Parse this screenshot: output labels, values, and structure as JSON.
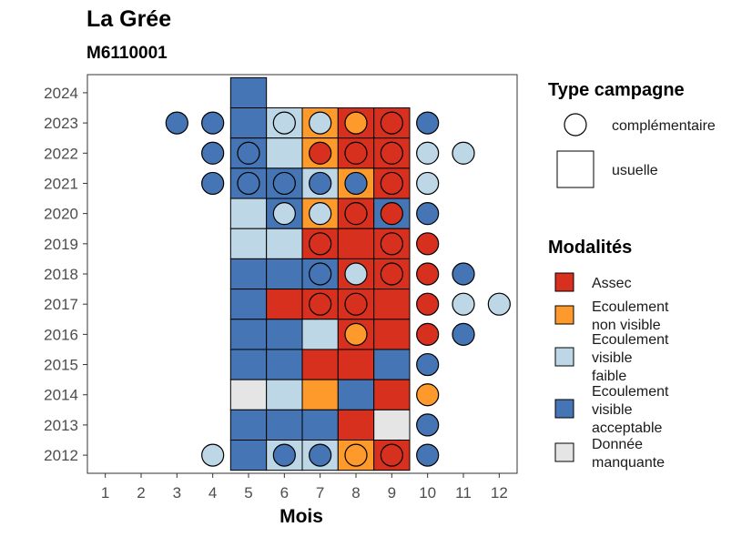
{
  "chart_data": {
    "type": "heatmap",
    "title": "La Grée",
    "subtitle": "M6110001",
    "xlabel": "Mois",
    "ylabel": "",
    "x_ticks": [
      1,
      2,
      3,
      4,
      5,
      6,
      7,
      8,
      9,
      10,
      11,
      12
    ],
    "y_ticks": [
      2012,
      2013,
      2014,
      2015,
      2016,
      2017,
      2018,
      2019,
      2020,
      2021,
      2022,
      2023,
      2024
    ],
    "xlim": [
      0.5,
      12.5
    ],
    "ylim": [
      2011.4,
      2024.6
    ],
    "grid": false,
    "legend_position": "right",
    "legend_shape": {
      "title": "Type campagne",
      "items": [
        {
          "key": "complementaire",
          "label": "complémentaire",
          "shape": "circle"
        },
        {
          "key": "usuelle",
          "label": "usuelle",
          "shape": "square"
        }
      ]
    },
    "legend_fill": {
      "title": "Modalités",
      "items": [
        {
          "key": "A",
          "lines": [
            "Assec"
          ],
          "color": "#d7301f"
        },
        {
          "key": "N",
          "lines": [
            "Ecoulement",
            "non visible"
          ],
          "color": "#fd9a2b"
        },
        {
          "key": "F",
          "lines": [
            "Ecoulement",
            "visible",
            "faible"
          ],
          "color": "#bdd7e7"
        },
        {
          "key": "E",
          "lines": [
            "Ecoulement",
            "visible",
            "acceptable"
          ],
          "color": "#4575b4"
        },
        {
          "key": "M",
          "lines": [
            "Donnée",
            "manquante"
          ],
          "color": "#e5e5e5"
        }
      ]
    },
    "usuelle": [
      {
        "year": 2024,
        "values": {
          "5": "E"
        }
      },
      {
        "year": 2023,
        "values": {
          "5": "E",
          "6": "F",
          "7": "N",
          "8": "A",
          "9": "A"
        }
      },
      {
        "year": 2022,
        "values": {
          "5": "E",
          "6": "F",
          "7": "N",
          "8": "A",
          "9": "A"
        }
      },
      {
        "year": 2021,
        "values": {
          "5": "E",
          "6": "E",
          "7": "F",
          "8": "N",
          "9": "A"
        }
      },
      {
        "year": 2020,
        "values": {
          "5": "F",
          "6": "E",
          "7": "N",
          "8": "A",
          "9": "E"
        }
      },
      {
        "year": 2019,
        "values": {
          "5": "F",
          "6": "F",
          "7": "A",
          "8": "A",
          "9": "A"
        }
      },
      {
        "year": 2018,
        "values": {
          "5": "E",
          "6": "E",
          "7": "E",
          "8": "A",
          "9": "A"
        }
      },
      {
        "year": 2017,
        "values": {
          "5": "E",
          "6": "A",
          "7": "A",
          "8": "A",
          "9": "A"
        }
      },
      {
        "year": 2016,
        "values": {
          "5": "E",
          "6": "E",
          "7": "F",
          "8": "A",
          "9": "A"
        }
      },
      {
        "year": 2015,
        "values": {
          "5": "E",
          "6": "E",
          "7": "A",
          "8": "A",
          "9": "E"
        }
      },
      {
        "year": 2014,
        "values": {
          "5": "M",
          "6": "F",
          "7": "N",
          "8": "E",
          "9": "A"
        }
      },
      {
        "year": 2013,
        "values": {
          "5": "E",
          "6": "E",
          "7": "E",
          "8": "A",
          "9": "M"
        }
      },
      {
        "year": 2012,
        "values": {
          "5": "E",
          "6": "F",
          "7": "F",
          "8": "N",
          "9": "A"
        }
      }
    ],
    "complementaire": [
      {
        "year": 2023,
        "values": {
          "3": "E",
          "4": "E",
          "6": "F",
          "7": "F",
          "8": "N",
          "9": "A",
          "10": "E"
        }
      },
      {
        "year": 2022,
        "values": {
          "4": "E",
          "5": "E",
          "7": "A",
          "8": "A",
          "9": "A",
          "10": "F",
          "11": "F"
        }
      },
      {
        "year": 2021,
        "values": {
          "4": "E",
          "5": "E",
          "6": "E",
          "7": "E",
          "8": "E",
          "9": "A",
          "10": "F"
        }
      },
      {
        "year": 2020,
        "values": {
          "6": "F",
          "7": "F",
          "8": "A",
          "9": "A",
          "10": "E"
        }
      },
      {
        "year": 2019,
        "values": {
          "7": "A",
          "9": "A",
          "10": "A"
        }
      },
      {
        "year": 2018,
        "values": {
          "7": "E",
          "8": "F",
          "9": "A",
          "10": "A",
          "11": "E"
        }
      },
      {
        "year": 2017,
        "values": {
          "7": "A",
          "8": "A",
          "10": "A",
          "11": "F",
          "12": "F"
        }
      },
      {
        "year": 2016,
        "values": {
          "8": "N",
          "10": "A",
          "11": "E"
        }
      },
      {
        "year": 2015,
        "values": {
          "10": "E"
        }
      },
      {
        "year": 2014,
        "values": {
          "10": "N"
        }
      },
      {
        "year": 2013,
        "values": {
          "10": "E"
        }
      },
      {
        "year": 2012,
        "values": {
          "4": "F",
          "6": "E",
          "7": "E",
          "8": "N",
          "9": "A",
          "10": "E"
        }
      }
    ]
  }
}
